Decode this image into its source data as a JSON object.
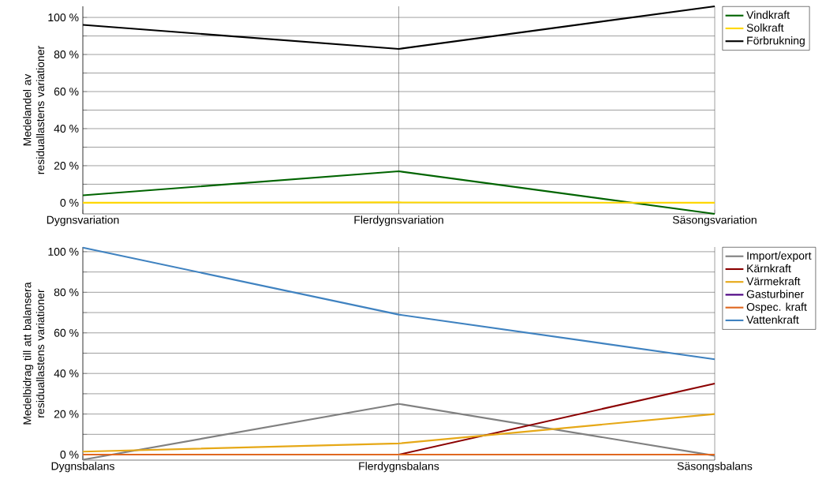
{
  "chart_data": [
    {
      "type": "line",
      "ylabel": "Medelandel av residuallastens variationer",
      "categories": [
        "Dygnsvariation",
        "Flerdygnsvariation",
        "Säsongsvariation"
      ],
      "series": [
        {
          "name": "Vindkraft",
          "color": "#006400",
          "values": [
            4,
            17,
            -6
          ]
        },
        {
          "name": "Solkraft",
          "color": "#ffd700",
          "values": [
            0,
            0.2,
            0
          ]
        },
        {
          "name": "Förbrukning",
          "color": "#000000",
          "values": [
            96,
            83,
            106
          ]
        }
      ],
      "ylim": [
        -6,
        106
      ],
      "yticks": [
        {
          "value": 0,
          "label": "0 %"
        },
        {
          "value": 10,
          "label": null
        },
        {
          "value": 20,
          "label": "20 %"
        },
        {
          "value": 30,
          "label": null
        },
        {
          "value": 40,
          "label": "40 %"
        },
        {
          "value": 50,
          "label": null
        },
        {
          "value": 60,
          "label": "60 %"
        },
        {
          "value": 70,
          "label": null
        },
        {
          "value": 80,
          "label": "80 %"
        },
        {
          "value": 90,
          "label": null
        },
        {
          "value": 100,
          "label": "100 %"
        }
      ],
      "grid": true,
      "legend": "top right",
      "marker": "none",
      "line_style": "solid"
    },
    {
      "type": "line",
      "ylabel": "Medelbidrag till att balansera residuallastens variationer",
      "categories": [
        "Dygnsbalans",
        "Flerdygnsbalans",
        "Säsongsbalans"
      ],
      "series": [
        {
          "name": "Import/export",
          "color": "#808080",
          "values": [
            -2.5,
            25,
            -0.5
          ]
        },
        {
          "name": "Kärnkraft",
          "color": "#8b0000",
          "values": [
            null,
            0,
            35
          ]
        },
        {
          "name": "Värmekraft",
          "color": "#e6a817",
          "values": [
            1.5,
            5.5,
            20
          ]
        },
        {
          "name": "Gasturbiner",
          "color": "#4b0082",
          "values": [
            null,
            null,
            null
          ]
        },
        {
          "name": "Ospec. kraft",
          "color": "#e06820",
          "values": [
            0,
            0,
            0
          ]
        },
        {
          "name": "Vattenkraft",
          "color": "#3f82c0",
          "values": [
            102,
            69,
            47
          ]
        }
      ],
      "ylim": [
        -2.7,
        102.3
      ],
      "yticks": [
        {
          "value": 0,
          "label": "0 %"
        },
        {
          "value": 10,
          "label": null
        },
        {
          "value": 20,
          "label": "20 %"
        },
        {
          "value": 30,
          "label": null
        },
        {
          "value": 40,
          "label": "40 %"
        },
        {
          "value": 50,
          "label": null
        },
        {
          "value": 60,
          "label": "60 %"
        },
        {
          "value": 70,
          "label": null
        },
        {
          "value": 80,
          "label": "80 %"
        },
        {
          "value": 90,
          "label": null
        },
        {
          "value": 100,
          "label": "100 %"
        }
      ],
      "grid": true,
      "legend": "top right",
      "marker": "none",
      "line_style": "solid"
    }
  ]
}
